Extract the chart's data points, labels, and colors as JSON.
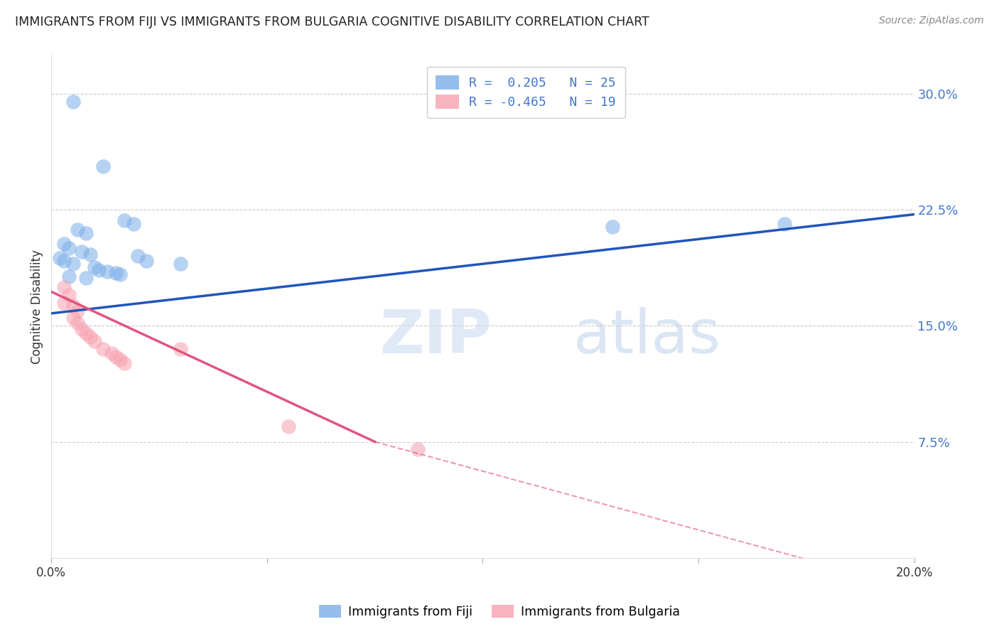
{
  "title": "IMMIGRANTS FROM FIJI VS IMMIGRANTS FROM BULGARIA COGNITIVE DISABILITY CORRELATION CHART",
  "source": "Source: ZipAtlas.com",
  "ylabel_label": "Cognitive Disability",
  "x_min": 0.0,
  "x_max": 0.2,
  "y_min": 0.0,
  "y_max": 0.325,
  "y_ticks": [
    0.075,
    0.15,
    0.225,
    0.3
  ],
  "y_tick_labels": [
    "7.5%",
    "15.0%",
    "22.5%",
    "30.0%"
  ],
  "fiji_R": 0.205,
  "fiji_N": 25,
  "bulgaria_R": -0.465,
  "bulgaria_N": 19,
  "fiji_color": "#7aaee8",
  "fiji_color_line": "#2255bb",
  "bulgaria_color": "#f7a0b0",
  "bulgaria_color_line": "#e05580",
  "fiji_line": [
    [
      0.0,
      0.158
    ],
    [
      0.2,
      0.222
    ]
  ],
  "bulgaria_line_solid": [
    [
      0.0,
      0.172
    ],
    [
      0.075,
      0.075
    ]
  ],
  "bulgaria_line_dashed": [
    [
      0.075,
      0.075
    ],
    [
      0.2,
      -0.02
    ]
  ],
  "fiji_points": [
    [
      0.005,
      0.295
    ],
    [
      0.012,
      0.253
    ],
    [
      0.017,
      0.218
    ],
    [
      0.019,
      0.216
    ],
    [
      0.006,
      0.212
    ],
    [
      0.008,
      0.21
    ],
    [
      0.003,
      0.203
    ],
    [
      0.004,
      0.2
    ],
    [
      0.007,
      0.198
    ],
    [
      0.009,
      0.196
    ],
    [
      0.002,
      0.194
    ],
    [
      0.003,
      0.192
    ],
    [
      0.005,
      0.19
    ],
    [
      0.01,
      0.188
    ],
    [
      0.011,
      0.186
    ],
    [
      0.013,
      0.185
    ],
    [
      0.015,
      0.184
    ],
    [
      0.016,
      0.183
    ],
    [
      0.004,
      0.182
    ],
    [
      0.008,
      0.181
    ],
    [
      0.02,
      0.195
    ],
    [
      0.022,
      0.192
    ],
    [
      0.03,
      0.19
    ],
    [
      0.13,
      0.214
    ],
    [
      0.17,
      0.216
    ]
  ],
  "bulgaria_points": [
    [
      0.003,
      0.175
    ],
    [
      0.004,
      0.17
    ],
    [
      0.003,
      0.165
    ],
    [
      0.005,
      0.163
    ],
    [
      0.006,
      0.16
    ],
    [
      0.005,
      0.155
    ],
    [
      0.006,
      0.152
    ],
    [
      0.007,
      0.148
    ],
    [
      0.008,
      0.145
    ],
    [
      0.009,
      0.143
    ],
    [
      0.01,
      0.14
    ],
    [
      0.012,
      0.135
    ],
    [
      0.014,
      0.132
    ],
    [
      0.015,
      0.13
    ],
    [
      0.016,
      0.128
    ],
    [
      0.017,
      0.126
    ],
    [
      0.03,
      0.135
    ],
    [
      0.055,
      0.085
    ],
    [
      0.085,
      0.07
    ]
  ],
  "watermark_zip": "ZIP",
  "watermark_atlas": "atlas",
  "legend_fiji_label": "Immigrants from Fiji",
  "legend_bulgaria_label": "Immigrants from Bulgaria"
}
